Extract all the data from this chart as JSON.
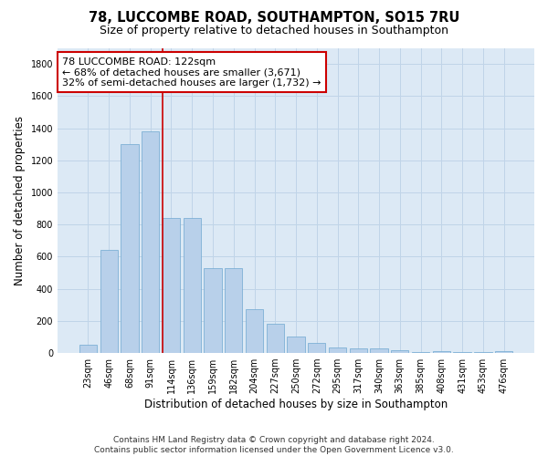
{
  "title": "78, LUCCOMBE ROAD, SOUTHAMPTON, SO15 7RU",
  "subtitle": "Size of property relative to detached houses in Southampton",
  "xlabel": "Distribution of detached houses by size in Southampton",
  "ylabel": "Number of detached properties",
  "categories": [
    "23sqm",
    "46sqm",
    "68sqm",
    "91sqm",
    "114sqm",
    "136sqm",
    "159sqm",
    "182sqm",
    "204sqm",
    "227sqm",
    "250sqm",
    "272sqm",
    "295sqm",
    "317sqm",
    "340sqm",
    "363sqm",
    "385sqm",
    "408sqm",
    "431sqm",
    "453sqm",
    "476sqm"
  ],
  "values": [
    50,
    640,
    1300,
    1380,
    840,
    840,
    530,
    530,
    275,
    185,
    105,
    65,
    35,
    30,
    30,
    15,
    5,
    10,
    5,
    5,
    10
  ],
  "bar_color": "#b8d0ea",
  "bar_edgecolor": "#6fa8d0",
  "highlight_line_color": "#cc0000",
  "annotation_text": "78 LUCCOMBE ROAD: 122sqm\n← 68% of detached houses are smaller (3,671)\n32% of semi-detached houses are larger (1,732) →",
  "annotation_box_color": "#ffffff",
  "annotation_box_edgecolor": "#cc0000",
  "ylim": [
    0,
    1900
  ],
  "yticks": [
    0,
    200,
    400,
    600,
    800,
    1000,
    1200,
    1400,
    1600,
    1800
  ],
  "footer_line1": "Contains HM Land Registry data © Crown copyright and database right 2024.",
  "footer_line2": "Contains public sector information licensed under the Open Government Licence v3.0.",
  "background_color": "#ffffff",
  "plot_bg_color": "#dce9f5",
  "grid_color": "#c0d4e8",
  "title_fontsize": 10.5,
  "subtitle_fontsize": 9,
  "axis_label_fontsize": 8.5,
  "tick_fontsize": 7,
  "annotation_fontsize": 8,
  "footer_fontsize": 6.5,
  "red_line_x": 3.575
}
